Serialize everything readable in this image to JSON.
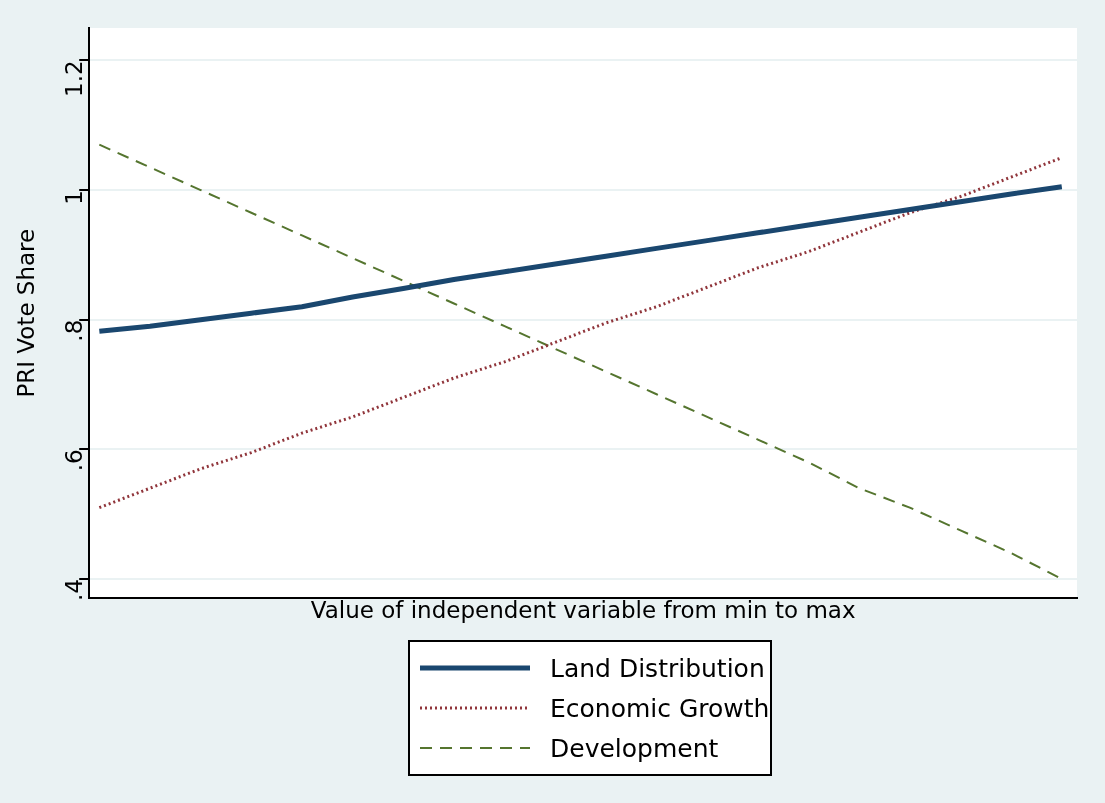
{
  "chart_data": {
    "type": "line",
    "xlabel": "Value of independent variable from min to max",
    "ylabel": "PRI Vote Share",
    "categories": [
      null,
      null,
      null,
      null,
      null,
      null,
      null,
      null,
      null,
      null,
      null,
      null,
      null,
      null,
      null,
      null,
      null,
      null,
      null,
      null
    ],
    "series": [
      {
        "name": "Land Distribution",
        "color": "#1a476f",
        "line_style": "solid",
        "values": [
          0.782,
          0.79,
          0.8,
          0.81,
          0.82,
          0.835,
          0.848,
          0.862,
          0.874,
          0.886,
          0.898,
          0.91,
          0.922,
          0.934,
          0.946,
          0.958,
          0.97,
          0.982,
          0.994,
          1.005
        ]
      },
      {
        "name": "Economic Growth",
        "color": "#90353b",
        "line_style": "dotted",
        "values": [
          0.51,
          0.54,
          0.57,
          0.595,
          0.625,
          0.65,
          0.68,
          0.71,
          0.735,
          0.765,
          0.795,
          0.82,
          0.85,
          0.88,
          0.905,
          0.935,
          0.965,
          0.99,
          1.02,
          1.05
        ]
      },
      {
        "name": "Development",
        "color": "#55752f",
        "line_style": "dashed",
        "values": [
          1.07,
          1.035,
          1.0,
          0.965,
          0.93,
          0.895,
          0.86,
          0.825,
          0.79,
          0.755,
          0.72,
          0.685,
          0.65,
          0.615,
          0.58,
          0.54,
          0.51,
          0.475,
          0.44,
          0.4
        ]
      }
    ],
    "ylim": [
      0.37,
      1.25
    ],
    "yticks": [
      {
        "value": 0.4,
        "label": ".4"
      },
      {
        "value": 0.6,
        "label": ".6"
      },
      {
        "value": 0.8,
        "label": ".8"
      },
      1,
      1.2
    ],
    "grid": "y",
    "legend": "bottom",
    "marker": "none",
    "tick_labels": "y"
  }
}
